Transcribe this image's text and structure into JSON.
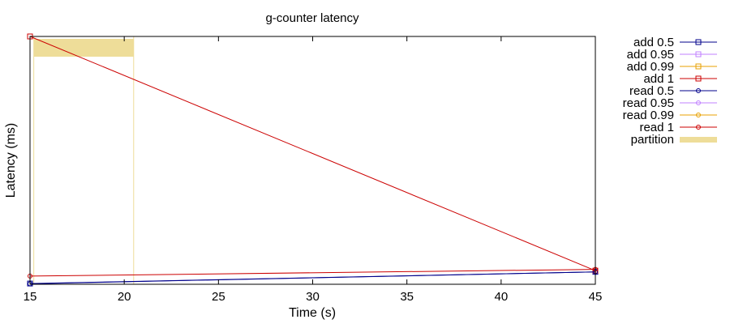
{
  "chart_data": {
    "type": "line",
    "title": "g-counter latency",
    "xlabel": "Time (s)",
    "ylabel": "Latency (ms)",
    "xlim": [
      15,
      45
    ],
    "ylim": [
      0,
      100
    ],
    "xticks": [
      "15",
      "20",
      "25",
      "30",
      "35",
      "40",
      "45"
    ],
    "grid": false,
    "legend_position": "right",
    "series": [
      {
        "name": "add 0.5",
        "color": "#00008b",
        "marker": "square",
        "points": [
          [
            15,
            0.3
          ],
          [
            45,
            5.0
          ]
        ]
      },
      {
        "name": "add 0.95",
        "color": "#c080ff",
        "marker": "square",
        "points": []
      },
      {
        "name": "add 0.99",
        "color": "#e8a000",
        "marker": "square",
        "points": []
      },
      {
        "name": "add 1",
        "color": "#cc0000",
        "marker": "square",
        "points": [
          [
            15,
            100
          ],
          [
            45,
            5.5
          ]
        ]
      },
      {
        "name": "read 0.5",
        "color": "#00008b",
        "marker": "circle",
        "points": [
          [
            15,
            0.2
          ],
          [
            45,
            5.0
          ]
        ]
      },
      {
        "name": "read 0.95",
        "color": "#c080ff",
        "marker": "circle",
        "points": []
      },
      {
        "name": "read 0.99",
        "color": "#e8a000",
        "marker": "circle",
        "points": []
      },
      {
        "name": "read 1",
        "color": "#cc0000",
        "marker": "circle",
        "points": [
          [
            15,
            3.3
          ],
          [
            45,
            6.0
          ]
        ]
      }
    ],
    "partition": {
      "name": "partition",
      "color": "#eedd99",
      "x_start": 15.2,
      "x_end": 20.5
    }
  }
}
